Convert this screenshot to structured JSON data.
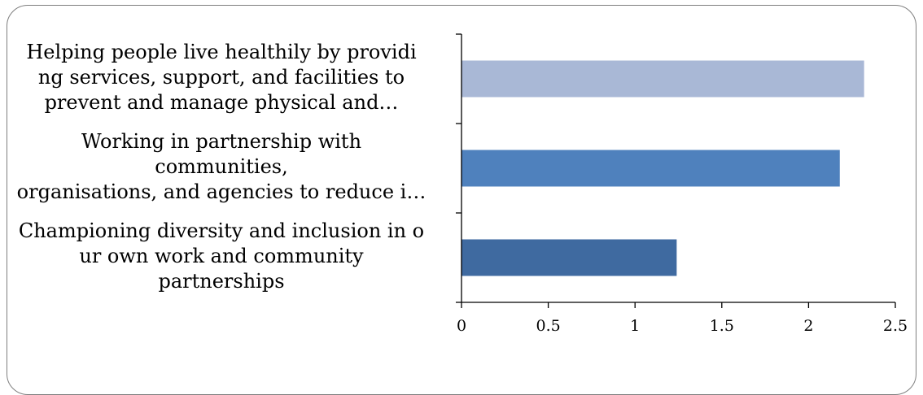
{
  "chart_data": {
    "type": "bar",
    "orientation": "horizontal",
    "title": "",
    "xlabel": "",
    "ylabel": "",
    "categories": [
      "Helping people live healthily by providing services, support, and facilities to prevent and manage physical and…",
      "Working in partnership with communities, organisations, and agencies to reduce i…",
      "Championing diversity and inclusion in our own work and community partnerships"
    ],
    "category_lines": [
      [
        "Helping people live healthily by providi",
        "ng services, support, and facilities to",
        "prevent and manage physical and…"
      ],
      [
        "Working in partnership with",
        "communities,",
        "organisations, and agencies to reduce i…"
      ],
      [
        "Championing diversity and inclusion in o",
        "ur own work and community",
        "partnerships"
      ]
    ],
    "values": [
      2.32,
      2.18,
      1.24
    ],
    "colors": [
      "#a9b8d6",
      "#4f81bd",
      "#3f6aa0"
    ],
    "xlim": [
      0,
      2.5
    ],
    "xticks": [
      "0",
      "0.5",
      "1",
      "1.5",
      "2",
      "2.5"
    ],
    "grid": false,
    "legend": "none"
  }
}
